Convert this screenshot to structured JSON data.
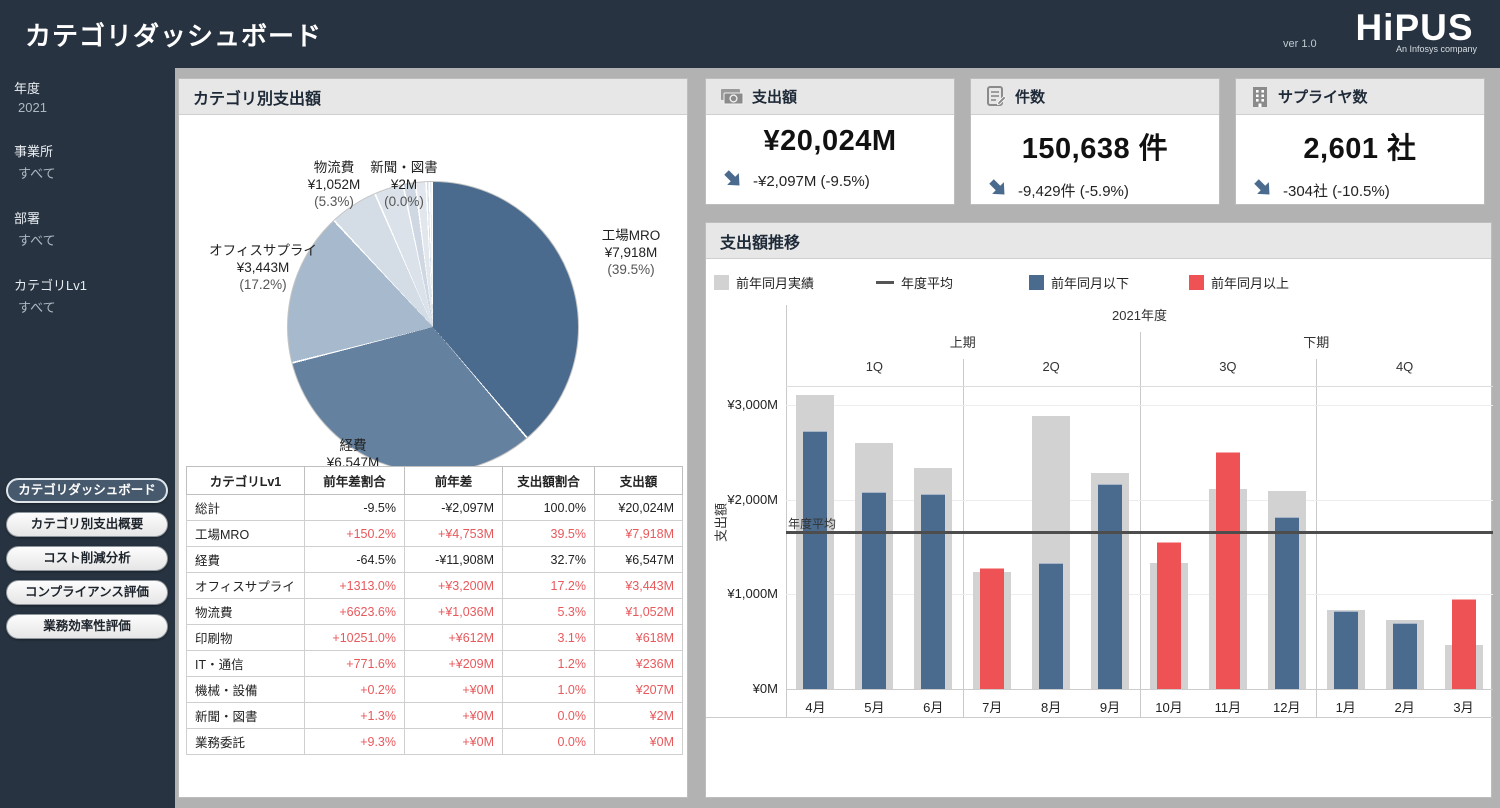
{
  "header": {
    "title": "カテゴリダッシュボード",
    "version": "ver 1.0",
    "logo": "HiPUS",
    "logo_sub": "An Infosys company"
  },
  "sidebar": {
    "filters": [
      {
        "label": "年度",
        "value": "2021"
      },
      {
        "label": "事業所",
        "value": "すべて"
      },
      {
        "label": "部署",
        "value": "すべて"
      },
      {
        "label": "カテゴリLv1",
        "value": "すべて"
      }
    ],
    "nav": [
      {
        "label": "カテゴリダッシュボード",
        "active": true
      },
      {
        "label": "カテゴリ別支出概要",
        "active": false
      },
      {
        "label": "コスト削減分析",
        "active": false
      },
      {
        "label": "コンプライアンス評価",
        "active": false
      },
      {
        "label": "業務効率性評価",
        "active": false
      }
    ]
  },
  "kpis": [
    {
      "icon": "money-icon",
      "title": "支出額",
      "value": "¥20,024M",
      "delta": "-¥2,097M (-9.5%)"
    },
    {
      "icon": "memo-icon",
      "title": "件数",
      "value": "150,638 件",
      "delta": "-9,429件 (-5.9%)"
    },
    {
      "icon": "building-icon",
      "title": "サプライヤ数",
      "value": "2,601 社",
      "delta": "-304社 (-10.5%)"
    }
  ],
  "table": {
    "columns": [
      "カテゴリLv1",
      "前年差割合",
      "前年差",
      "支出額割合",
      "支出額"
    ],
    "rows": [
      {
        "category": "総計",
        "yoy_pct": "-9.5%",
        "yoy_diff": "-¥2,097M",
        "share": "100.0%",
        "amount": "¥20,024M",
        "accent": "black"
      },
      {
        "category": "工場MRO",
        "yoy_pct": "+150.2%",
        "yoy_diff": "+¥4,753M",
        "share": "39.5%",
        "amount": "¥7,918M",
        "accent": "red"
      },
      {
        "category": "経費",
        "yoy_pct": "-64.5%",
        "yoy_diff": "-¥11,908M",
        "share": "32.7%",
        "amount": "¥6,547M",
        "accent": "black"
      },
      {
        "category": "オフィスサプライ",
        "yoy_pct": "+1313.0%",
        "yoy_diff": "+¥3,200M",
        "share": "17.2%",
        "amount": "¥3,443M",
        "accent": "red"
      },
      {
        "category": "物流費",
        "yoy_pct": "+6623.6%",
        "yoy_diff": "+¥1,036M",
        "share": "5.3%",
        "amount": "¥1,052M",
        "accent": "red"
      },
      {
        "category": "印刷物",
        "yoy_pct": "+10251.0%",
        "yoy_diff": "+¥612M",
        "share": "3.1%",
        "amount": "¥618M",
        "accent": "red"
      },
      {
        "category": "IT・通信",
        "yoy_pct": "+771.6%",
        "yoy_diff": "+¥209M",
        "share": "1.2%",
        "amount": "¥236M",
        "accent": "red"
      },
      {
        "category": "機械・設備",
        "yoy_pct": "+0.2%",
        "yoy_diff": "+¥0M",
        "share": "1.0%",
        "amount": "¥207M",
        "accent": "red"
      },
      {
        "category": "新聞・図書",
        "yoy_pct": "+1.3%",
        "yoy_diff": "+¥0M",
        "share": "0.0%",
        "amount": "¥2M",
        "accent": "red"
      },
      {
        "category": "業務委託",
        "yoy_pct": "+9.3%",
        "yoy_diff": "+¥0M",
        "share": "0.0%",
        "amount": "¥0M",
        "accent": "red"
      }
    ]
  },
  "chart_data": [
    {
      "type": "pie",
      "title": "カテゴリ別支出額",
      "labels": [
        "工場MRO",
        "経費",
        "オフィスサプライ",
        "物流費",
        "印刷物",
        "IT・通信",
        "機械・設備",
        "新聞・図書",
        "業務委託"
      ],
      "values_m": [
        7918,
        6547,
        3443,
        1052,
        618,
        236,
        207,
        2,
        0
      ],
      "percents": [
        39.5,
        32.7,
        17.2,
        5.3,
        3.1,
        1.2,
        1.0,
        0.0,
        0.0
      ],
      "colors": [
        "#4a6b8e",
        "#64819f",
        "#a7b9cc",
        "#d4dce6",
        "#dbe2ea",
        "#cfd8e2",
        "#e2e7ed",
        "#d5dde6",
        "#e8ecf1"
      ],
      "callouts": [
        {
          "name": "工場MRO",
          "value": "¥7,918M",
          "pct": "(39.5%)"
        },
        {
          "name": "経費",
          "value": "¥6,547M",
          "pct": "(32.7%)"
        },
        {
          "name": "オフィスサプライ",
          "value": "¥3,443M",
          "pct": "(17.2%)"
        },
        {
          "name": "物流費",
          "value": "¥1,052M",
          "pct": "(5.3%)"
        },
        {
          "name": "新聞・図書",
          "value": "¥2M",
          "pct": "(0.0%)"
        }
      ]
    },
    {
      "type": "bar",
      "title": "支出額推移",
      "fiscal_year_label": "2021年度",
      "half_labels": [
        "上期",
        "下期"
      ],
      "quarter_labels": [
        "1Q",
        "2Q",
        "3Q",
        "4Q"
      ],
      "categories": [
        "4月",
        "5月",
        "6月",
        "7月",
        "8月",
        "9月",
        "10月",
        "11月",
        "12月",
        "1月",
        "2月",
        "3月"
      ],
      "series": [
        {
          "name": "前年同月実績",
          "values": [
            3100,
            2600,
            2330,
            1240,
            2880,
            2280,
            1330,
            2110,
            2090,
            830,
            730,
            460
          ]
        },
        {
          "name": "当年実績",
          "values": [
            2730,
            2080,
            2060,
            1280,
            1330,
            2160,
            1550,
            2500,
            1820,
            820,
            700,
            950
          ],
          "status": [
            "below",
            "below",
            "below",
            "above",
            "below",
            "below",
            "above",
            "above",
            "below",
            "below",
            "below",
            "above"
          ]
        }
      ],
      "legend": [
        {
          "label": "前年同月実績",
          "type": "swatch",
          "color": "#d2d2d2"
        },
        {
          "label": "年度平均",
          "type": "line",
          "color": "#555555"
        },
        {
          "label": "前年同月以下",
          "type": "swatch",
          "color": "#4a6b8e"
        },
        {
          "label": "前年同月以上",
          "type": "swatch",
          "color": "#ee5254"
        }
      ],
      "average_line": {
        "label": "年度平均",
        "value": 1669
      },
      "ylabel": "支出額",
      "yticks": [
        {
          "label": "¥3,000M",
          "value": 3000
        },
        {
          "label": "¥2,000M",
          "value": 2000
        },
        {
          "label": "¥1,000M",
          "value": 1000
        },
        {
          "label": "¥0M",
          "value": 0
        }
      ],
      "ylim": [
        0,
        3200
      ],
      "colors": {
        "prev": "#d2d2d2",
        "below": "#4a6b8e",
        "above": "#ee5254"
      }
    }
  ]
}
